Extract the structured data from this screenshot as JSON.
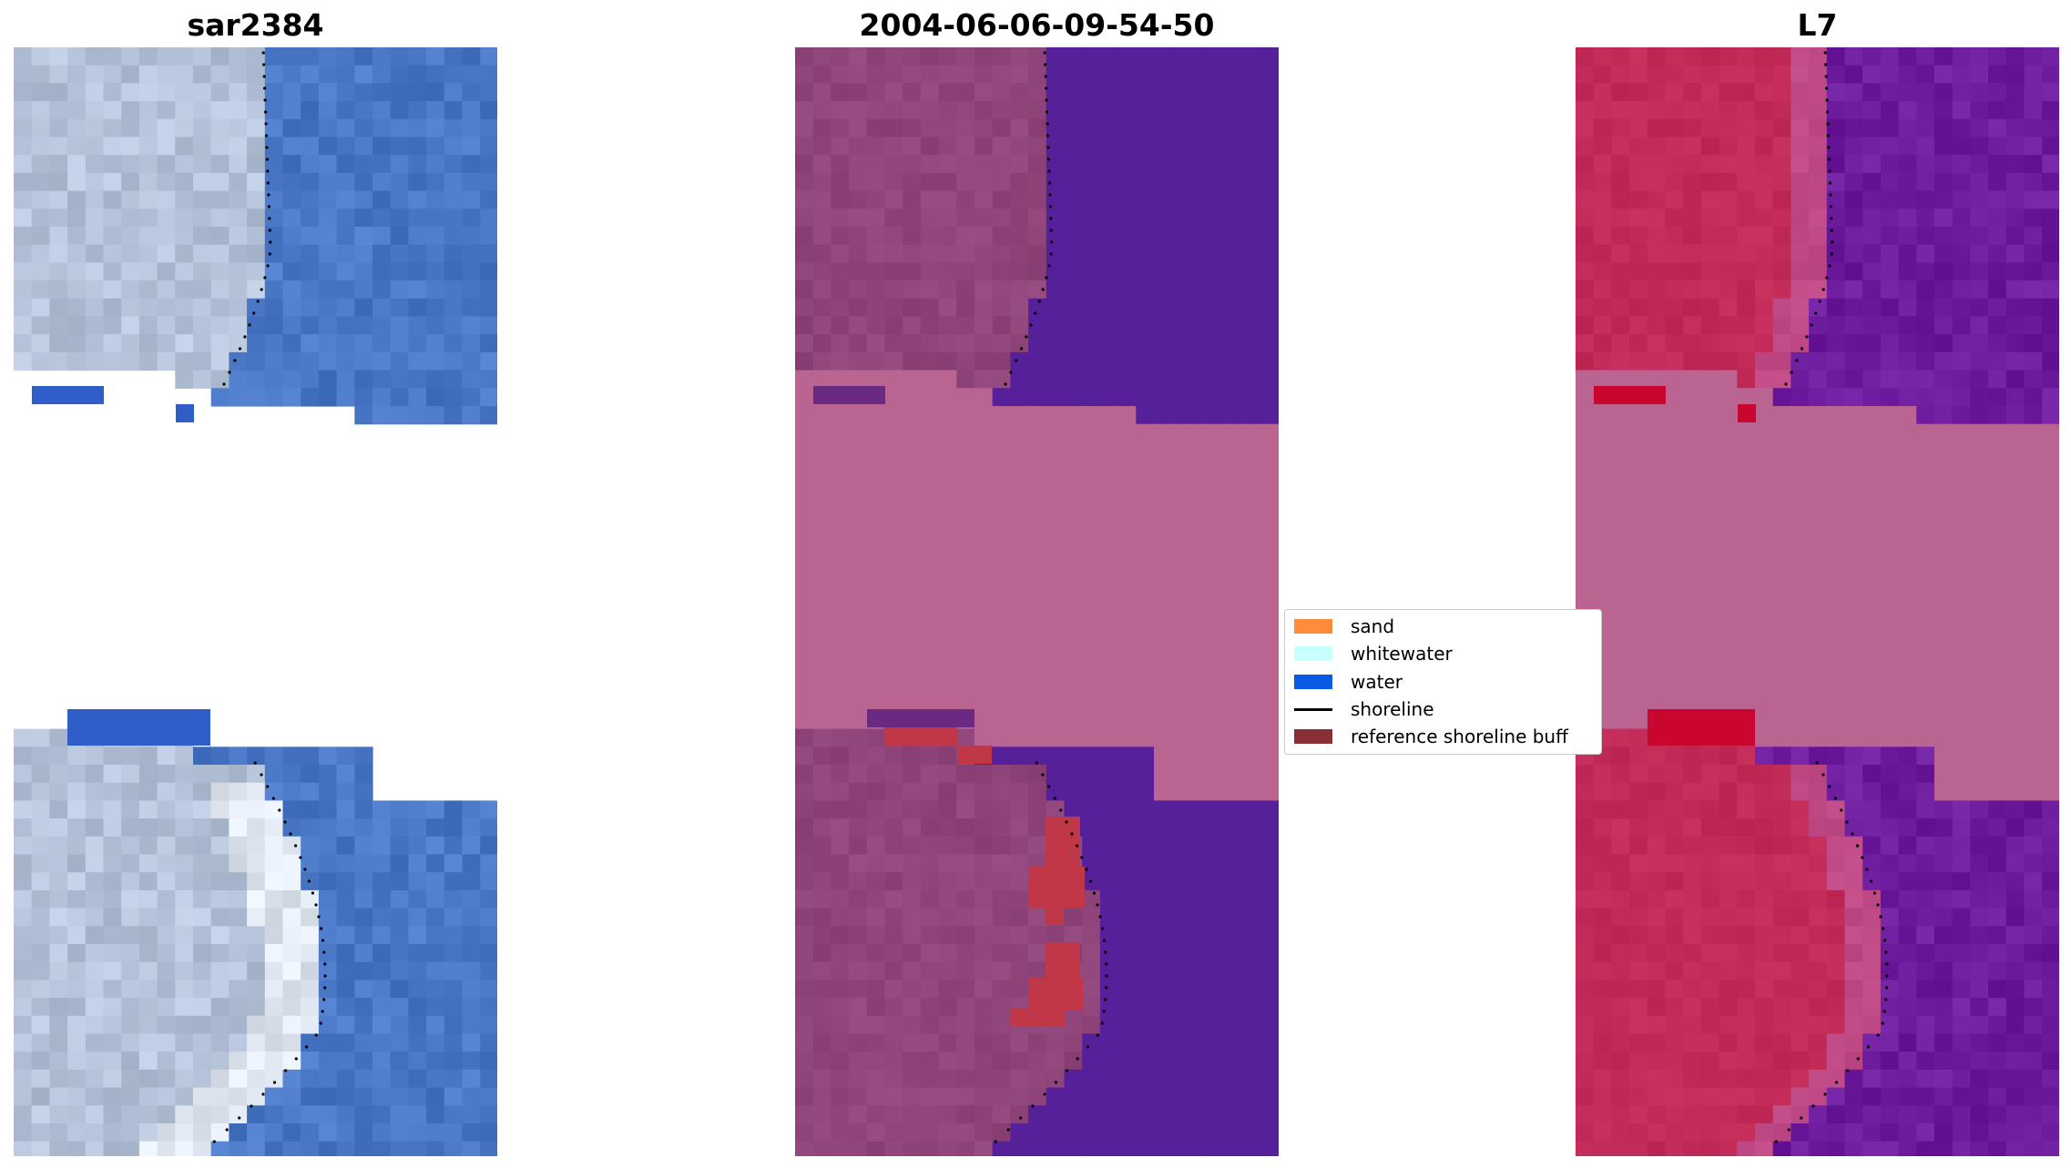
{
  "panels": [
    {
      "id": "rgb",
      "title": "sar2384"
    },
    {
      "id": "classified",
      "title": "2004-06-06-09-54-50"
    },
    {
      "id": "mndwi",
      "title": "L7"
    }
  ],
  "legend": {
    "items": [
      {
        "label": "sand",
        "color": "#ff8c3a",
        "kind": "patch"
      },
      {
        "label": "whitewater",
        "color": "#c8ffff",
        "kind": "patch"
      },
      {
        "label": "water",
        "color": "#0a5ae6",
        "kind": "patch"
      },
      {
        "label": "shoreline",
        "color": "#000000",
        "kind": "line"
      },
      {
        "label": "reference shoreline buff",
        "color": "#8b2f37",
        "kind": "patch"
      }
    ]
  },
  "colors": {
    "rgb_land": "#b4c3d7",
    "rgb_water": "#4a78c6",
    "class_land": "#8f4579",
    "class_water": "#55209a",
    "class_nodata": "#ba6492",
    "class_buffer": "#c03848",
    "index_land": "#c22a57",
    "index_water": "#6d1c9e",
    "index_nodata": "#ba6492",
    "index_hot": "#c8062e"
  }
}
